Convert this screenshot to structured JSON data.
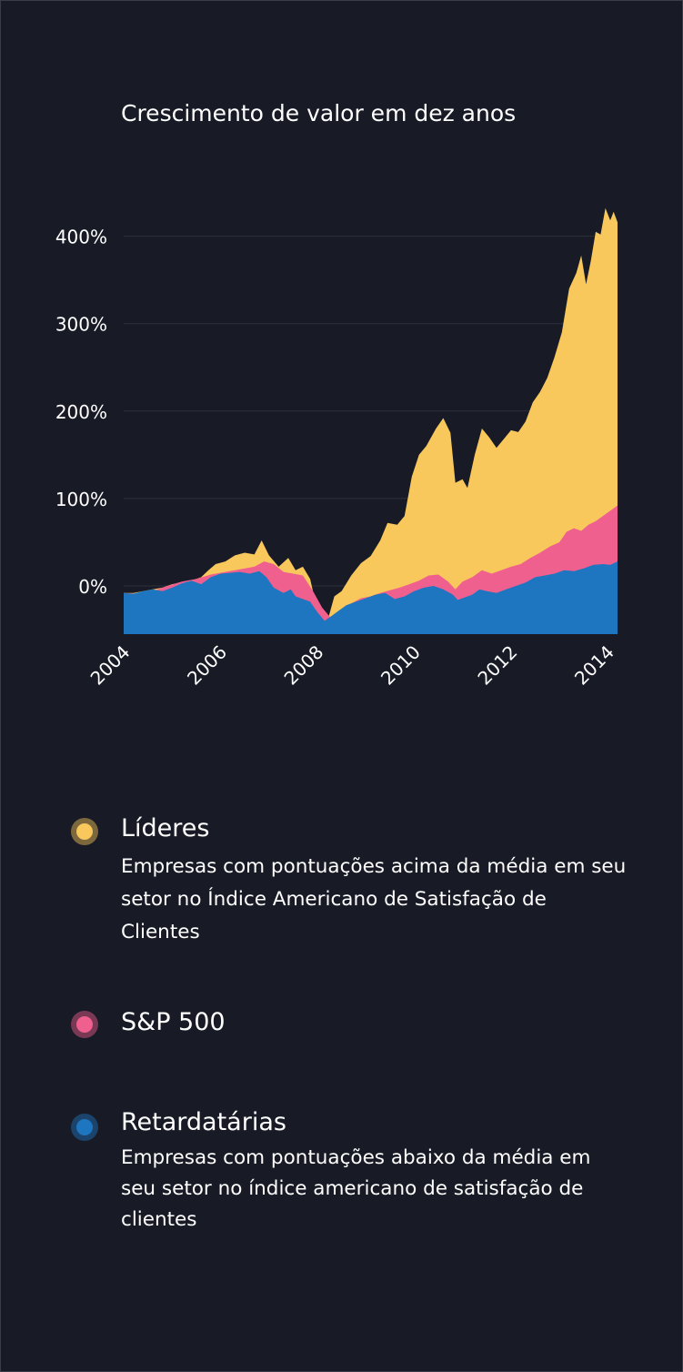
{
  "colors": {
    "background": "#181b26",
    "leaders": "#f8c85c",
    "sp500": "#f0608e",
    "laggards": "#1f76c0",
    "grid": "#2c303c"
  },
  "legend": [
    {
      "name": "Líderes",
      "description": "Empresas com pontuações acima da média em seu setor no Índice Americano de Satisfação de Clientes",
      "color": "#f8c85c"
    },
    {
      "name": "S&P 500",
      "description": "",
      "color": "#f0608e"
    },
    {
      "name": "Retardatárias",
      "description": "Empresas com pontuações abaixo da média em seu setor no índice americano de satisfação de clientes",
      "color": "#1f76c0"
    }
  ],
  "chart_data": {
    "type": "area",
    "title": "Crescimento de valor em dez anos",
    "xlabel": "",
    "ylabel": "",
    "xlim": [
      2004,
      2014.2
    ],
    "ylim": [
      -55,
      440
    ],
    "x_ticks": [
      "2004",
      "2006",
      "2008",
      "2010",
      "2012",
      "2014"
    ],
    "y_ticks": [
      "0%",
      "100%",
      "200%",
      "300%",
      "400%"
    ],
    "y_tick_values": [
      0,
      100,
      200,
      300,
      400
    ],
    "grid": true,
    "series": [
      {
        "name": "Líderes",
        "color": "#f8c85c",
        "points": [
          [
            2004.0,
            -8
          ],
          [
            2004.2,
            -8
          ],
          [
            2004.4,
            -6
          ],
          [
            2004.6,
            -4
          ],
          [
            2004.8,
            -2
          ],
          [
            2005.0,
            2
          ],
          [
            2005.2,
            4
          ],
          [
            2005.4,
            6
          ],
          [
            2005.6,
            10
          ],
          [
            2005.75,
            18
          ],
          [
            2005.9,
            25
          ],
          [
            2006.1,
            28
          ],
          [
            2006.3,
            35
          ],
          [
            2006.5,
            38
          ],
          [
            2006.7,
            36
          ],
          [
            2006.85,
            52
          ],
          [
            2007.0,
            35
          ],
          [
            2007.2,
            22
          ],
          [
            2007.4,
            32
          ],
          [
            2007.55,
            18
          ],
          [
            2007.7,
            22
          ],
          [
            2007.85,
            8
          ],
          [
            2008.0,
            -28
          ],
          [
            2008.2,
            -42
          ],
          [
            2008.35,
            -12
          ],
          [
            2008.5,
            -6
          ],
          [
            2008.7,
            12
          ],
          [
            2008.9,
            26
          ],
          [
            2009.1,
            34
          ],
          [
            2009.3,
            52
          ],
          [
            2009.45,
            72
          ],
          [
            2009.65,
            70
          ],
          [
            2009.8,
            80
          ],
          [
            2009.95,
            125
          ],
          [
            2010.1,
            150
          ],
          [
            2010.25,
            160
          ],
          [
            2010.45,
            180
          ],
          [
            2010.6,
            192
          ],
          [
            2010.75,
            175
          ],
          [
            2010.85,
            118
          ],
          [
            2011.0,
            122
          ],
          [
            2011.1,
            112
          ],
          [
            2011.25,
            150
          ],
          [
            2011.4,
            180
          ],
          [
            2011.55,
            170
          ],
          [
            2011.7,
            158
          ],
          [
            2011.85,
            168
          ],
          [
            2012.0,
            178
          ],
          [
            2012.15,
            176
          ],
          [
            2012.3,
            188
          ],
          [
            2012.45,
            210
          ],
          [
            2012.6,
            222
          ],
          [
            2012.75,
            238
          ],
          [
            2012.9,
            262
          ],
          [
            2013.05,
            290
          ],
          [
            2013.2,
            340
          ],
          [
            2013.35,
            358
          ],
          [
            2013.45,
            378
          ],
          [
            2013.55,
            345
          ],
          [
            2013.65,
            372
          ],
          [
            2013.75,
            405
          ],
          [
            2013.85,
            402
          ],
          [
            2013.95,
            432
          ],
          [
            2014.05,
            418
          ],
          [
            2014.12,
            428
          ],
          [
            2014.2,
            416
          ]
        ]
      },
      {
        "name": "S&P 500",
        "color": "#f0608e",
        "points": [
          [
            2004.0,
            -8
          ],
          [
            2004.3,
            -9
          ],
          [
            2004.6,
            -6
          ],
          [
            2004.9,
            0
          ],
          [
            2005.2,
            5
          ],
          [
            2005.5,
            8
          ],
          [
            2005.8,
            13
          ],
          [
            2006.1,
            16
          ],
          [
            2006.4,
            19
          ],
          [
            2006.7,
            22
          ],
          [
            2006.9,
            28
          ],
          [
            2007.1,
            25
          ],
          [
            2007.3,
            16
          ],
          [
            2007.5,
            14
          ],
          [
            2007.7,
            12
          ],
          [
            2007.9,
            -5
          ],
          [
            2008.1,
            -25
          ],
          [
            2008.3,
            -38
          ],
          [
            2008.5,
            -28
          ],
          [
            2008.7,
            -20
          ],
          [
            2008.9,
            -14
          ],
          [
            2009.1,
            -12
          ],
          [
            2009.3,
            -8
          ],
          [
            2009.5,
            -5
          ],
          [
            2009.7,
            -2
          ],
          [
            2009.9,
            2
          ],
          [
            2010.1,
            6
          ],
          [
            2010.3,
            12
          ],
          [
            2010.5,
            13
          ],
          [
            2010.7,
            5
          ],
          [
            2010.85,
            -4
          ],
          [
            2011.0,
            5
          ],
          [
            2011.2,
            10
          ],
          [
            2011.4,
            18
          ],
          [
            2011.6,
            14
          ],
          [
            2011.8,
            18
          ],
          [
            2012.0,
            22
          ],
          [
            2012.2,
            25
          ],
          [
            2012.4,
            32
          ],
          [
            2012.6,
            38
          ],
          [
            2012.8,
            45
          ],
          [
            2013.0,
            50
          ],
          [
            2013.15,
            62
          ],
          [
            2013.3,
            66
          ],
          [
            2013.45,
            63
          ],
          [
            2013.6,
            70
          ],
          [
            2013.75,
            74
          ],
          [
            2013.9,
            80
          ],
          [
            2014.05,
            86
          ],
          [
            2014.2,
            92
          ]
        ]
      },
      {
        "name": "Retardatárias",
        "color": "#1f76c0",
        "points": [
          [
            2004.0,
            -8
          ],
          [
            2004.2,
            -9
          ],
          [
            2004.4,
            -6
          ],
          [
            2004.6,
            -4
          ],
          [
            2004.8,
            -6
          ],
          [
            2005.0,
            -2
          ],
          [
            2005.2,
            3
          ],
          [
            2005.4,
            6
          ],
          [
            2005.6,
            2
          ],
          [
            2005.8,
            10
          ],
          [
            2006.0,
            14
          ],
          [
            2006.2,
            15
          ],
          [
            2006.4,
            16
          ],
          [
            2006.6,
            14
          ],
          [
            2006.8,
            17
          ],
          [
            2006.95,
            10
          ],
          [
            2007.1,
            -2
          ],
          [
            2007.3,
            -8
          ],
          [
            2007.45,
            -4
          ],
          [
            2007.55,
            -12
          ],
          [
            2007.7,
            -15
          ],
          [
            2007.85,
            -18
          ],
          [
            2008.0,
            -30
          ],
          [
            2008.15,
            -40
          ],
          [
            2008.3,
            -34
          ],
          [
            2008.45,
            -28
          ],
          [
            2008.6,
            -22
          ],
          [
            2008.8,
            -18
          ],
          [
            2009.0,
            -14
          ],
          [
            2009.2,
            -10
          ],
          [
            2009.4,
            -8
          ],
          [
            2009.6,
            -15
          ],
          [
            2009.8,
            -12
          ],
          [
            2010.0,
            -6
          ],
          [
            2010.2,
            -2
          ],
          [
            2010.4,
            0
          ],
          [
            2010.6,
            -4
          ],
          [
            2010.8,
            -10
          ],
          [
            2010.9,
            -16
          ],
          [
            2011.0,
            -14
          ],
          [
            2011.2,
            -10
          ],
          [
            2011.35,
            -4
          ],
          [
            2011.5,
            -6
          ],
          [
            2011.7,
            -8
          ],
          [
            2011.9,
            -4
          ],
          [
            2012.1,
            0
          ],
          [
            2012.3,
            4
          ],
          [
            2012.5,
            10
          ],
          [
            2012.7,
            12
          ],
          [
            2012.9,
            14
          ],
          [
            2013.1,
            18
          ],
          [
            2013.3,
            17
          ],
          [
            2013.5,
            20
          ],
          [
            2013.7,
            24
          ],
          [
            2013.9,
            25
          ],
          [
            2014.05,
            24
          ],
          [
            2014.2,
            28
          ]
        ]
      }
    ]
  }
}
